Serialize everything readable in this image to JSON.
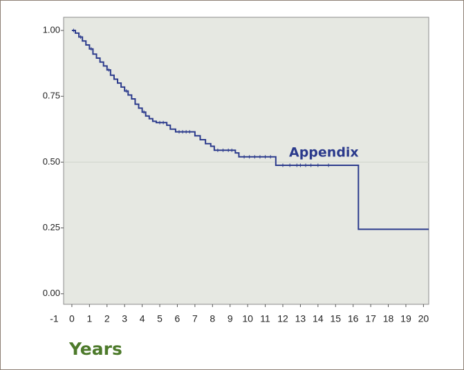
{
  "chart_data": {
    "type": "step",
    "color": "#2b3a8c",
    "annotation": "Appendix",
    "xlabel": "Years",
    "x": [
      0,
      0.2,
      0.4,
      0.6,
      0.8,
      1.0,
      1.2,
      1.4,
      1.6,
      1.8,
      2.0,
      2.2,
      2.4,
      2.6,
      2.8,
      3.0,
      3.2,
      3.4,
      3.6,
      3.8,
      4.0,
      4.2,
      4.4,
      4.6,
      4.8,
      5.4,
      5.6,
      5.9,
      7.0,
      7.3,
      7.6,
      7.9,
      8.1,
      9.3,
      9.5,
      11.6,
      16.3,
      20.3
    ],
    "values": [
      1.0,
      0.99,
      0.975,
      0.96,
      0.945,
      0.93,
      0.91,
      0.895,
      0.88,
      0.865,
      0.85,
      0.83,
      0.815,
      0.8,
      0.785,
      0.77,
      0.755,
      0.74,
      0.72,
      0.705,
      0.69,
      0.675,
      0.665,
      0.655,
      0.65,
      0.64,
      0.625,
      0.615,
      0.6,
      0.585,
      0.57,
      0.56,
      0.545,
      0.535,
      0.52,
      0.488,
      0.245,
      0.245
    ],
    "censored_x": [
      0.1,
      0.5,
      1.1,
      2.1,
      3.1,
      4.1,
      5.0,
      5.2,
      6.1,
      6.3,
      6.5,
      6.7,
      8.3,
      8.6,
      8.9,
      9.1,
      9.8,
      10.1,
      10.4,
      10.7,
      11.0,
      11.3,
      12.0,
      12.4,
      12.8,
      13.0,
      13.3,
      13.6,
      14.0,
      14.6
    ],
    "xlim": [
      -1,
      20.3
    ],
    "ylim": [
      -0.04,
      1.05
    ],
    "xticks": [
      -1,
      0,
      1,
      2,
      3,
      4,
      5,
      6,
      7,
      8,
      9,
      10,
      11,
      12,
      13,
      14,
      15,
      16,
      17,
      18,
      19,
      20
    ],
    "yticks": [
      {
        "value": 0,
        "label": "0.00"
      },
      0.25,
      {
        "value": 0.5,
        "label": "0.50"
      },
      0.75,
      {
        "value": 1,
        "label": "1.00"
      }
    ],
    "refline": {
      "value": 0.5,
      "label": "0.50"
    }
  }
}
